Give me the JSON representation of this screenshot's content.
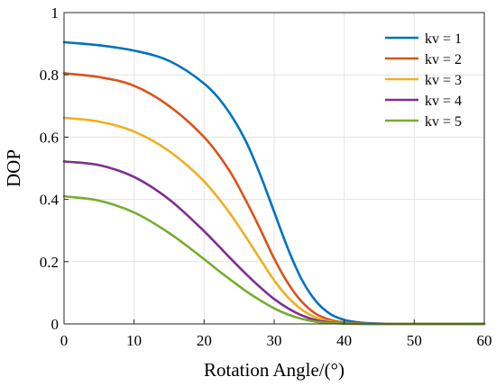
{
  "chart_data": {
    "type": "line",
    "xlabel": "Rotation Angle/(°)",
    "ylabel": "DOP",
    "xlim": [
      0,
      60
    ],
    "ylim": [
      0,
      1
    ],
    "xticks": [
      0,
      10,
      20,
      30,
      40,
      50,
      60
    ],
    "yticks": [
      0,
      0.2,
      0.4,
      0.6,
      0.8,
      1
    ],
    "xtick_labels": [
      "0",
      "10",
      "20",
      "30",
      "40",
      "50",
      "60"
    ],
    "ytick_labels": [
      "0",
      "0.2",
      "0.4",
      "0.6",
      "0.8",
      "1"
    ],
    "grid": true,
    "legend_position": "top-right",
    "x": [
      0,
      5,
      10,
      15,
      20,
      22,
      24,
      26,
      28,
      30,
      32,
      34,
      36,
      38,
      40,
      42,
      44,
      46,
      48,
      50,
      55,
      60
    ],
    "series": [
      {
        "name": "kv = 1",
        "color": "#0072BD",
        "values": [
          0.905,
          0.895,
          0.878,
          0.845,
          0.772,
          0.727,
          0.665,
          0.585,
          0.48,
          0.36,
          0.24,
          0.14,
          0.072,
          0.032,
          0.013,
          0.005,
          0.002,
          0.0005,
          0.0002,
          0,
          0,
          0
        ]
      },
      {
        "name": "kv = 2",
        "color": "#D95319",
        "values": [
          0.805,
          0.793,
          0.765,
          0.7,
          0.6,
          0.545,
          0.478,
          0.395,
          0.305,
          0.21,
          0.13,
          0.07,
          0.032,
          0.013,
          0.005,
          0.0015,
          0.0005,
          0,
          0,
          0,
          0,
          0
        ]
      },
      {
        "name": "kv = 3",
        "color": "#EDB120",
        "values": [
          0.662,
          0.65,
          0.618,
          0.555,
          0.458,
          0.405,
          0.345,
          0.278,
          0.208,
          0.14,
          0.085,
          0.045,
          0.02,
          0.008,
          0.003,
          0.001,
          0,
          0,
          0,
          0,
          0,
          0
        ]
      },
      {
        "name": "kv = 4",
        "color": "#7E2F8E",
        "values": [
          0.522,
          0.51,
          0.472,
          0.4,
          0.298,
          0.252,
          0.205,
          0.16,
          0.118,
          0.08,
          0.05,
          0.027,
          0.012,
          0.005,
          0.002,
          0.0005,
          0,
          0,
          0,
          0,
          0,
          0
        ]
      },
      {
        "name": "kv = 5",
        "color": "#77AC30",
        "values": [
          0.41,
          0.396,
          0.358,
          0.292,
          0.208,
          0.172,
          0.138,
          0.105,
          0.076,
          0.05,
          0.03,
          0.016,
          0.007,
          0.003,
          0.001,
          0,
          0,
          0,
          0,
          0,
          0,
          0
        ]
      }
    ]
  }
}
